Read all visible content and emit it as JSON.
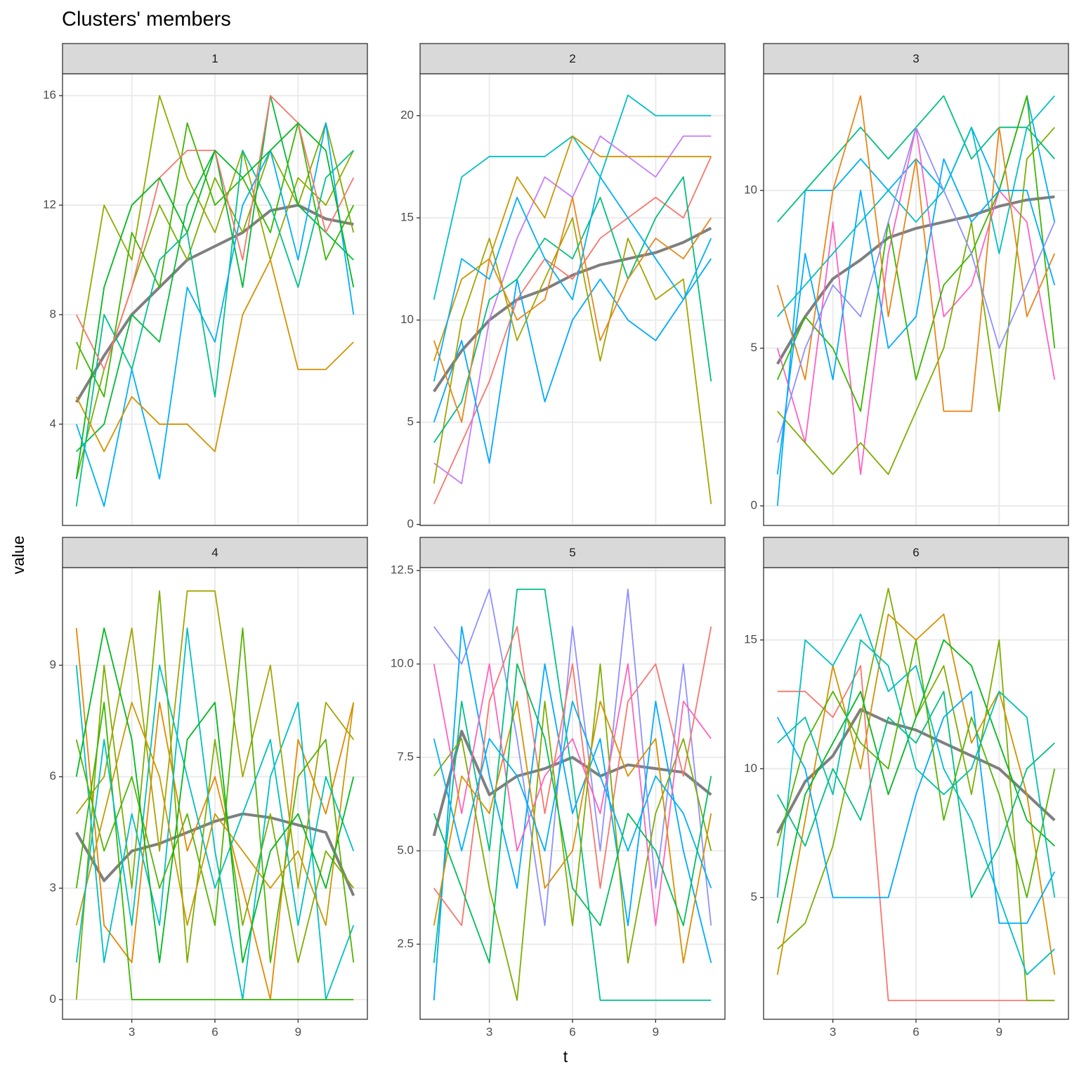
{
  "title": "Clusters' members",
  "xlabel": "t",
  "ylabel": "value",
  "chart_data": [
    {
      "type": "line",
      "label": "1",
      "grid": true,
      "x": [
        1,
        2,
        3,
        4,
        5,
        6,
        7,
        8,
        9,
        10,
        11
      ],
      "xlim": [
        0.5,
        11.5
      ],
      "xticks": [
        3,
        6,
        9
      ],
      "ylim": [
        0.3,
        16.8
      ],
      "yticks": [
        4,
        8,
        12,
        16
      ],
      "series": [
        {
          "color": "#7f7f7f",
          "values": [
            4.8,
            6.5,
            8,
            9,
            10,
            10.5,
            11,
            11.8,
            12,
            11.5,
            11.3
          ]
        },
        {
          "color": "#7CAE00",
          "values": [
            2,
            6,
            9,
            12,
            10,
            13,
            11,
            14,
            12,
            15,
            11
          ]
        },
        {
          "color": "#93AA00",
          "values": [
            6,
            12,
            10,
            16,
            13,
            11,
            14,
            10,
            13,
            12,
            14
          ]
        },
        {
          "color": "#00BA38",
          "values": [
            3,
            4,
            8,
            7,
            12,
            14,
            9,
            16,
            12,
            11,
            10
          ]
        },
        {
          "color": "#39B600",
          "values": [
            7,
            5,
            11,
            9,
            15,
            12,
            13,
            11,
            15,
            10,
            12
          ]
        },
        {
          "color": "#00C08B",
          "values": [
            1,
            8,
            6,
            10,
            11,
            5,
            14,
            12,
            9,
            13,
            14
          ]
        },
        {
          "color": "#00B0F6",
          "values": [
            4,
            1,
            6,
            2,
            9,
            7,
            12,
            14,
            10,
            15,
            8
          ]
        },
        {
          "color": "#F8766D",
          "values": [
            8,
            6,
            9,
            13,
            14,
            14,
            10,
            16,
            15,
            11,
            13
          ]
        },
        {
          "color": "#D39200",
          "values": [
            5,
            3,
            5,
            4,
            4,
            3,
            8,
            10,
            6,
            6,
            7
          ]
        },
        {
          "color": "#00B81F",
          "values": [
            2,
            9,
            12,
            13,
            11,
            14,
            13,
            14,
            15,
            14,
            9
          ]
        }
      ]
    },
    {
      "type": "line",
      "label": "2",
      "grid": true,
      "x": [
        1,
        2,
        3,
        4,
        5,
        6,
        7,
        8,
        9,
        10,
        11
      ],
      "xlim": [
        0.5,
        11.5
      ],
      "xticks": [
        3,
        6,
        9
      ],
      "ylim": [
        -0.05,
        22.05
      ],
      "yticks": [
        0,
        5,
        10,
        15,
        20
      ],
      "series": [
        {
          "color": "#7f7f7f",
          "values": [
            6.5,
            8.5,
            10,
            11,
            11.5,
            12.2,
            12.7,
            13,
            13.3,
            13.8,
            14.5
          ]
        },
        {
          "color": "#F8766D",
          "values": [
            1,
            4,
            7,
            11,
            13,
            12,
            14,
            15,
            16,
            15,
            18
          ]
        },
        {
          "color": "#00BFC4",
          "values": [
            11,
            17,
            18,
            18,
            18,
            19,
            17,
            21,
            20,
            20,
            20
          ]
        },
        {
          "color": "#C77CFF",
          "values": [
            3,
            2,
            10,
            14,
            17,
            16,
            19,
            18,
            17,
            19,
            19
          ]
        },
        {
          "color": "#CD9600",
          "values": [
            8,
            12,
            13,
            17,
            15,
            19,
            18,
            18,
            18,
            18,
            18
          ]
        },
        {
          "color": "#00A9FF",
          "values": [
            5,
            9,
            3,
            12,
            6,
            10,
            12,
            10,
            9,
            11,
            13
          ]
        },
        {
          "color": "#A3A500",
          "values": [
            2,
            10,
            14,
            9,
            12,
            15,
            8,
            14,
            11,
            12,
            1
          ]
        },
        {
          "color": "#00BF7D",
          "values": [
            4,
            6,
            11,
            12,
            14,
            13,
            16,
            12,
            15,
            17,
            7
          ]
        },
        {
          "color": "#E7861B",
          "values": [
            9,
            5,
            13,
            10,
            11,
            16,
            9,
            12,
            14,
            13,
            15
          ]
        },
        {
          "color": "#00B0F6",
          "values": [
            7,
            13,
            12,
            16,
            13,
            11,
            17,
            15,
            13,
            11,
            14
          ]
        }
      ]
    },
    {
      "type": "line",
      "label": "3",
      "grid": true,
      "x": [
        1,
        2,
        3,
        4,
        5,
        6,
        7,
        8,
        9,
        10,
        11
      ],
      "xlim": [
        0.5,
        11.5
      ],
      "xticks": [
        3,
        6,
        9
      ],
      "ylim": [
        -0.62,
        13.7
      ],
      "yticks": [
        0,
        5,
        10
      ],
      "series": [
        {
          "color": "#7f7f7f",
          "values": [
            4.5,
            6,
            7.2,
            7.8,
            8.5,
            8.8,
            9,
            9.2,
            9.5,
            9.7,
            9.8
          ]
        },
        {
          "color": "#00B0F6",
          "values": [
            0,
            10,
            10,
            11,
            10,
            11,
            10,
            12,
            10,
            13,
            9
          ]
        },
        {
          "color": "#FF61C3",
          "values": [
            5,
            2,
            9,
            1,
            8,
            12,
            6,
            7,
            10,
            9,
            4
          ]
        },
        {
          "color": "#7CAE00",
          "values": [
            3,
            2,
            1,
            2,
            1,
            3,
            5,
            9,
            3,
            11,
            12
          ]
        },
        {
          "color": "#00BF7D",
          "values": [
            9,
            10,
            11,
            12,
            11,
            12,
            13,
            11,
            12,
            12,
            11
          ]
        },
        {
          "color": "#00BFC4",
          "values": [
            6,
            7,
            8,
            9,
            10,
            9,
            10,
            12,
            8,
            12,
            13
          ]
        },
        {
          "color": "#39B600",
          "values": [
            4,
            6,
            5,
            3,
            9,
            4,
            7,
            8,
            10,
            13,
            5
          ]
        },
        {
          "color": "#E7861B",
          "values": [
            7,
            4,
            10,
            13,
            6,
            11,
            3,
            3,
            12,
            6,
            8
          ]
        },
        {
          "color": "#8F91FF",
          "values": [
            2,
            5,
            7,
            6,
            9,
            12,
            10,
            8,
            5,
            7,
            9
          ]
        },
        {
          "color": "#00ABFD",
          "values": [
            1,
            8,
            4,
            10,
            5,
            6,
            11,
            9,
            10,
            10,
            7
          ]
        }
      ]
    },
    {
      "type": "line",
      "label": "4",
      "grid": true,
      "x": [
        1,
        2,
        3,
        4,
        5,
        6,
        7,
        8,
        9,
        10,
        11
      ],
      "xlim": [
        0.5,
        11.5
      ],
      "xticks": [
        3,
        6,
        9
      ],
      "ylim": [
        -0.53,
        11.63
      ],
      "yticks": [
        0,
        3,
        6,
        9
      ],
      "series": [
        {
          "color": "#7f7f7f",
          "values": [
            4.5,
            3.2,
            4,
            4.2,
            4.5,
            4.8,
            5,
            4.9,
            4.7,
            4.5,
            2.8
          ]
        },
        {
          "color": "#E58700",
          "values": [
            10,
            2,
            1,
            8,
            4,
            6,
            3,
            0,
            7,
            5,
            8
          ]
        },
        {
          "color": "#7CAE00",
          "values": [
            0,
            9,
            3,
            11,
            1,
            7,
            2,
            5,
            1,
            4,
            3
          ]
        },
        {
          "color": "#00BFC4",
          "values": [
            9,
            1,
            5,
            2,
            10,
            4,
            0,
            6,
            8,
            0,
            2
          ]
        },
        {
          "color": "#A3A500",
          "values": [
            5,
            6,
            10,
            4,
            11,
            11,
            6,
            9,
            3,
            8,
            7
          ]
        },
        {
          "color": "#39B600",
          "values": [
            3,
            8,
            0,
            0,
            0,
            0,
            0,
            0,
            0,
            0,
            0
          ]
        },
        {
          "color": "#53B400",
          "values": [
            7,
            4,
            6,
            3,
            5,
            2,
            10,
            1,
            6,
            7,
            1
          ]
        },
        {
          "color": "#C99800",
          "values": [
            2,
            5,
            8,
            6,
            2,
            5,
            4,
            3,
            4,
            2,
            8
          ]
        },
        {
          "color": "#00C0B8",
          "values": [
            1,
            7,
            2,
            9,
            6,
            3,
            5,
            7,
            2,
            6,
            4
          ]
        },
        {
          "color": "#00B81F",
          "values": [
            6,
            10,
            7,
            1,
            7,
            8,
            1,
            4,
            5,
            3,
            6
          ]
        }
      ]
    },
    {
      "type": "line",
      "label": "5",
      "grid": true,
      "x": [
        1,
        2,
        3,
        4,
        5,
        6,
        7,
        8,
        9,
        10,
        11
      ],
      "xlim": [
        0.5,
        11.5
      ],
      "xticks": [
        3,
        6,
        9
      ],
      "ylim": [
        0.49,
        12.58
      ],
      "yticks": [
        2.5,
        {
          "value": 5,
          "label": "5.0"
        },
        7.5,
        {
          "value": 10,
          "label": "10.0"
        },
        12.5
      ],
      "series": [
        {
          "color": "#7f7f7f",
          "values": [
            5.4,
            8.2,
            6.5,
            7,
            7.2,
            7.5,
            7,
            7.3,
            7.2,
            7.1,
            6.5
          ]
        },
        {
          "color": "#8F91FF",
          "values": [
            11,
            10,
            12,
            8,
            3,
            11,
            5,
            12,
            4,
            10,
            3
          ]
        },
        {
          "color": "#00C08B",
          "values": [
            2,
            9,
            5,
            12,
            12,
            7,
            1,
            1,
            1,
            1,
            1
          ]
        },
        {
          "color": "#00A9FF",
          "values": [
            1,
            11,
            7,
            4,
            10,
            6,
            8,
            3,
            9,
            5,
            2
          ]
        },
        {
          "color": "#F8766D",
          "values": [
            4,
            3,
            9,
            11,
            6,
            10,
            4,
            9,
            10,
            7,
            11
          ]
        },
        {
          "color": "#7CAE00",
          "values": [
            7,
            8,
            4,
            1,
            9,
            3,
            10,
            2,
            6,
            8,
            5
          ]
        },
        {
          "color": "#FF62BC",
          "values": [
            10,
            6,
            10,
            5,
            7,
            8,
            6,
            10,
            3,
            9,
            8
          ]
        },
        {
          "color": "#D89000",
          "values": [
            3,
            7,
            6,
            9,
            4,
            5,
            9,
            7,
            8,
            2,
            6
          ]
        },
        {
          "color": "#00B0F6",
          "values": [
            8,
            5,
            8,
            7,
            5,
            9,
            7,
            5,
            7,
            6,
            4
          ]
        },
        {
          "color": "#00BD5C",
          "values": [
            6,
            4,
            2,
            10,
            8,
            4,
            3,
            6,
            5,
            3,
            7
          ]
        }
      ]
    },
    {
      "type": "line",
      "label": "6",
      "grid": true,
      "x": [
        1,
        2,
        3,
        4,
        5,
        6,
        7,
        8,
        9,
        10,
        11
      ],
      "xlim": [
        0.5,
        11.5
      ],
      "xticks": [
        3,
        6,
        9
      ],
      "ylim": [
        0.27,
        17.81
      ],
      "yticks": [
        5,
        10,
        15
      ],
      "series": [
        {
          "color": "#7f7f7f",
          "values": [
            7.5,
            9.5,
            10.5,
            12.3,
            11.8,
            11.5,
            11,
            10.5,
            10,
            9,
            8
          ]
        },
        {
          "color": "#F8766D",
          "values": [
            13,
            13,
            12,
            14,
            1,
            1,
            1,
            1,
            1,
            1,
            1
          ]
        },
        {
          "color": "#7CAE00",
          "values": [
            3,
            4,
            7,
            12,
            17,
            12,
            14,
            9,
            15,
            1,
            1
          ]
        },
        {
          "color": "#D39200",
          "values": [
            2,
            8,
            14,
            10,
            16,
            15,
            16,
            11,
            13,
            9,
            2
          ]
        },
        {
          "color": "#00BFC4",
          "values": [
            5,
            15,
            14,
            16,
            13,
            14,
            10,
            8,
            5,
            2,
            3
          ]
        },
        {
          "color": "#00A9FF",
          "values": [
            12,
            10,
            5,
            5,
            5,
            9,
            12,
            13,
            4,
            4,
            6
          ]
        },
        {
          "color": "#00B81F",
          "values": [
            4,
            9,
            11,
            13,
            9,
            12,
            15,
            14,
            11,
            8,
            7
          ]
        },
        {
          "color": "#00BF7D",
          "values": [
            9,
            7,
            10,
            8,
            12,
            11,
            13,
            5,
            7,
            10,
            11
          ]
        },
        {
          "color": "#53B400",
          "values": [
            7,
            11,
            13,
            11,
            10,
            15,
            8,
            12,
            9,
            5,
            10
          ]
        },
        {
          "color": "#00C1A9",
          "values": [
            11,
            12,
            9,
            15,
            14,
            10,
            9,
            10,
            13,
            12,
            5
          ]
        }
      ]
    }
  ]
}
